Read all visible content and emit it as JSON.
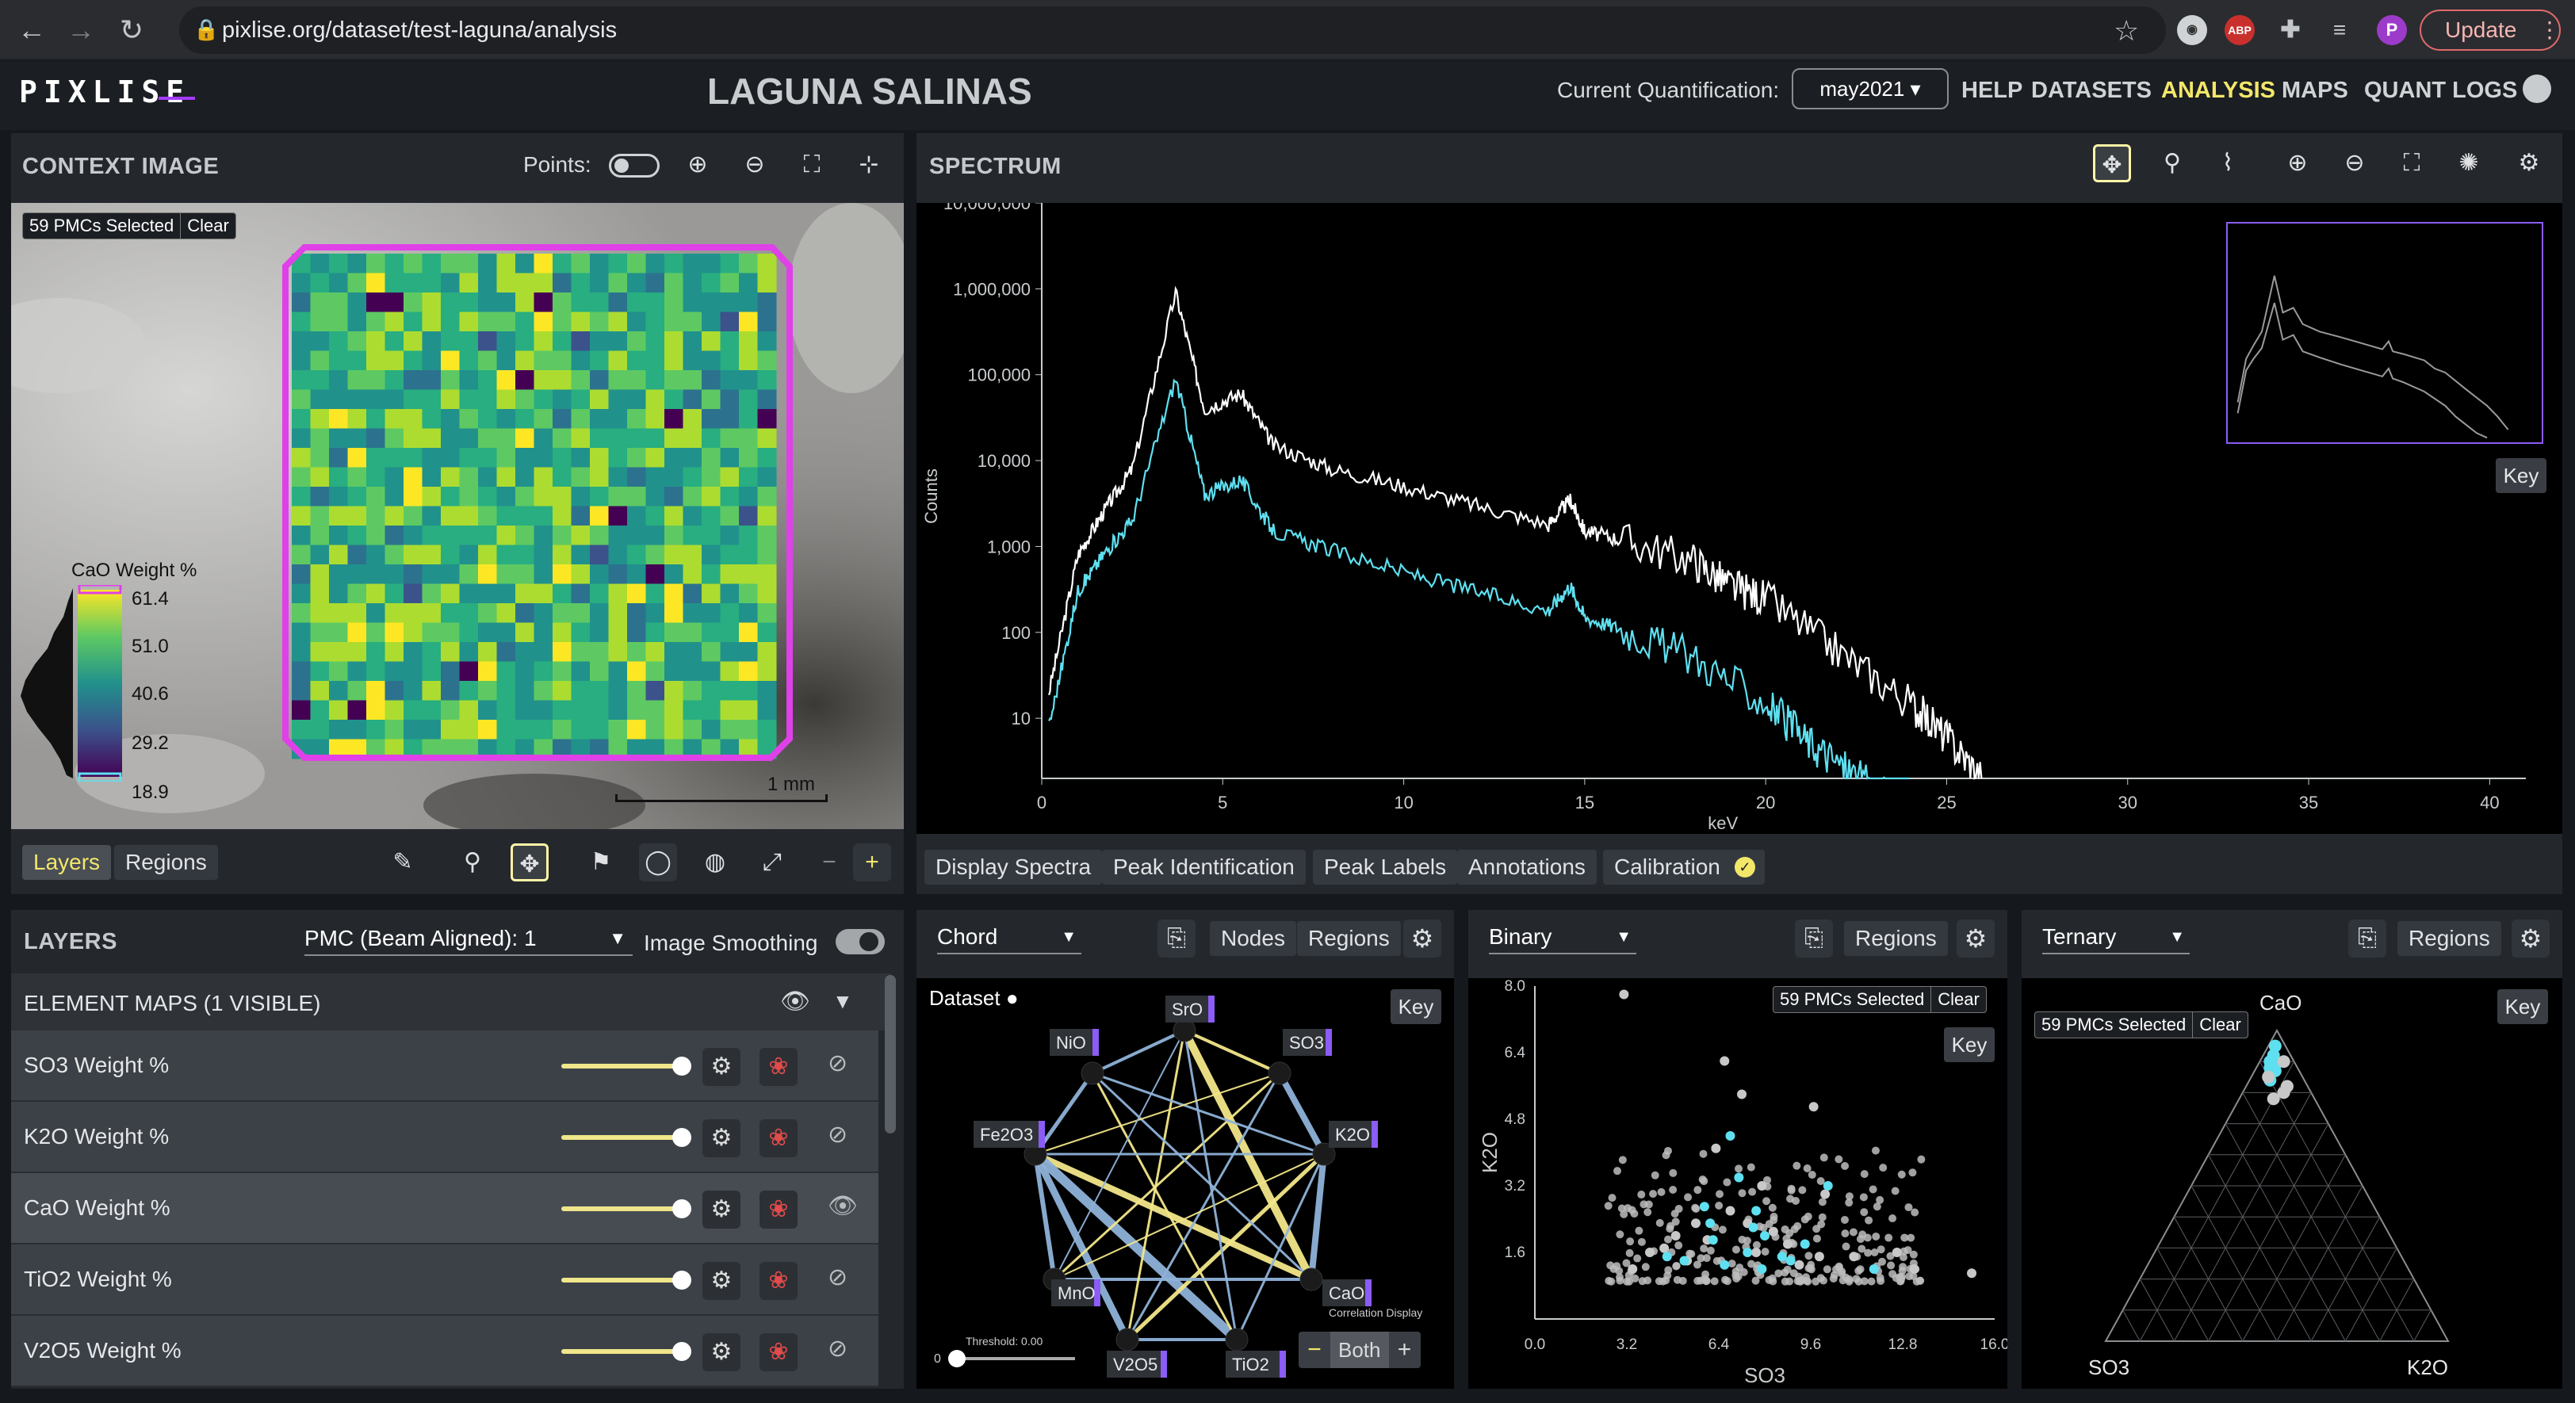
{
  "browser": {
    "url": "pixlise.org/dataset/test-laguna/analysis",
    "update_label": "Update",
    "profile_initial": "P",
    "ext_abp": "ABP"
  },
  "header": {
    "logo": "PIXLISE",
    "dataset_title": "LAGUNA SALINAS",
    "quant_label": "Current Quantification:",
    "quant_value": "may2021 ▾",
    "nav": [
      "HELP",
      "DATASETS",
      "ANALYSIS",
      "MAPS",
      "QUANT LOGS"
    ],
    "active_nav": "ANALYSIS",
    "accent": "#f3e76a"
  },
  "context": {
    "title": "CONTEXT IMAGE",
    "points_label": "Points:",
    "selection_badge": "59 PMCs Selected",
    "clear_label": "Clear",
    "colorbar_title": "CaO Weight %",
    "colorbar_ticks": [
      "61.4",
      "51.0",
      "40.6",
      "29.2",
      "18.9"
    ],
    "scale_label": "1 mm",
    "tabs": [
      "Layers",
      "Regions"
    ],
    "selection_color": "#e040e8"
  },
  "spectrum": {
    "title": "SPECTRUM",
    "key_label": "Key",
    "bottom_tabs": [
      "Display Spectra",
      "Peak Identification",
      "Peak Labels",
      "Annotations",
      "Calibration"
    ],
    "chart_data": {
      "type": "line",
      "xlabel": "keV",
      "ylabel": "Counts",
      "xlim": [
        0,
        41
      ],
      "y_log": true,
      "x_ticks": [
        "0",
        "5",
        "10",
        "15",
        "20",
        "25",
        "30",
        "35",
        "40"
      ],
      "y_ticks": [
        "10,000,000",
        "1,000,000",
        "100,000",
        "10,000",
        "1,000",
        "100",
        "10"
      ],
      "series": [
        {
          "color": "#ffffff",
          "x": [
            0.2,
            1,
            1.7,
            2.5,
            3.7,
            4.5,
            5.5,
            6.4,
            8,
            10,
            12,
            14,
            14.6,
            15,
            16,
            18,
            19,
            20,
            22,
            24,
            25,
            26
          ],
          "y": [
            20,
            800,
            2500,
            8000,
            900000,
            40000,
            60000,
            15000,
            8000,
            5000,
            3000,
            1800,
            3500,
            1500,
            1200,
            700,
            350,
            250,
            60,
            15,
            6,
            2
          ]
        },
        {
          "color": "#5ee0f0",
          "x": [
            0.2,
            1,
            1.7,
            2.5,
            3.7,
            4.5,
            5.5,
            6.4,
            8,
            10,
            12,
            14,
            14.6,
            15,
            16,
            18,
            20,
            21,
            22,
            23,
            24
          ],
          "y": [
            8,
            300,
            800,
            2000,
            90000,
            4000,
            6000,
            1500,
            900,
            500,
            300,
            180,
            350,
            150,
            110,
            50,
            15,
            6,
            3,
            1.5,
            1
          ]
        }
      ]
    }
  },
  "layers": {
    "title": "LAYERS",
    "pmc_select": "PMC (Beam Aligned): 1",
    "smoothing_label": "Image Smoothing",
    "group_label": "ELEMENT MAPS (1 VISIBLE)",
    "rows": [
      {
        "name": "SO3 Weight %",
        "visible": false
      },
      {
        "name": "K2O Weight %",
        "visible": false
      },
      {
        "name": "CaO Weight %",
        "visible": true
      },
      {
        "name": "TiO2 Weight %",
        "visible": false
      },
      {
        "name": "V2O5 Weight %",
        "visible": false
      }
    ]
  },
  "chord": {
    "select": "Chord",
    "tabs": [
      "Nodes",
      "Regions"
    ],
    "dataset_label": "Dataset",
    "key_label": "Key",
    "nodes": [
      "SrO",
      "SO3",
      "K2O",
      "CaO",
      "TiO2",
      "V2O5",
      "MnO",
      "Fe2O3",
      "NiO"
    ],
    "threshold_label": "Threshold: 0.00",
    "threshold_zero": "0",
    "both_label": "Both",
    "correlation_label": "Correlation Display"
  },
  "binary": {
    "select": "Binary",
    "tabs": [
      "Regions"
    ],
    "selection_badge": "59 PMCs Selected",
    "clear_label": "Clear",
    "key_label": "Key",
    "chart_data": {
      "type": "scatter",
      "xlabel": "SO3",
      "ylabel": "K2O",
      "xlim": [
        0,
        16
      ],
      "ylim": [
        0,
        8
      ],
      "x_ticks": [
        "0.0",
        "3.2",
        "6.4",
        "9.6",
        "12.8",
        "16.0"
      ],
      "y_ticks": [
        "8.0",
        "6.4",
        "4.8",
        "3.2",
        "1.6"
      ],
      "series": [
        {
          "color": "#c8c8c8",
          "x": [
            3.1,
            6.6,
            7.2,
            9.7,
            6.3,
            5.6,
            7.9,
            10.1,
            8.3,
            4.5,
            4.0,
            6.0,
            5.3,
            7.7,
            8.8,
            9.9,
            11.1,
            12.6,
            13.2,
            15.2,
            3.4,
            6.8,
            7.4,
            4.9,
            9.2
          ],
          "y": [
            7.8,
            6.2,
            5.4,
            5.1,
            4.1,
            2.3,
            3.2,
            3.0,
            2.1,
            1.7,
            1.6,
            1.9,
            1.4,
            1.6,
            1.8,
            1.5,
            1.5,
            1.6,
            1.2,
            1.1,
            1.2,
            2.6,
            2.3,
            2.0,
            1.3
          ]
        },
        {
          "color": "#5ee0f0",
          "x": [
            6.8,
            7.1,
            5.9,
            7.6,
            8.0,
            6.2,
            7.4,
            8.6,
            5.2,
            6.6,
            7.9,
            9.4,
            10.2,
            11.8,
            4.6,
            6.1,
            7.7,
            8.9
          ],
          "y": [
            4.4,
            3.4,
            2.7,
            2.2,
            2.0,
            1.9,
            1.6,
            1.5,
            1.4,
            1.3,
            1.2,
            1.8,
            3.2,
            1.2,
            1.5,
            2.3,
            2.6,
            1.4
          ]
        }
      ]
    }
  },
  "ternary": {
    "select": "Ternary",
    "tabs": [
      "Regions"
    ],
    "selection_badge": "59 PMCs Selected",
    "clear_label": "Clear",
    "key_label": "Key",
    "chart_data": {
      "type": "scatter",
      "axes": [
        "CaO",
        "SO3",
        "K2O"
      ],
      "series": [
        {
          "color": "#5ee0f0",
          "a": [
            0.92,
            0.88,
            0.9,
            0.86,
            0.84,
            0.95,
            0.89,
            0.87
          ],
          "b": [
            0.05,
            0.08,
            0.07,
            0.09,
            0.1,
            0.03,
            0.06,
            0.07
          ]
        },
        {
          "color": "#c8c8c8",
          "a": [
            0.8,
            0.78,
            0.82,
            0.9,
            0.85
          ],
          "b": [
            0.08,
            0.12,
            0.06,
            0.03,
            0.1
          ]
        }
      ]
    }
  }
}
